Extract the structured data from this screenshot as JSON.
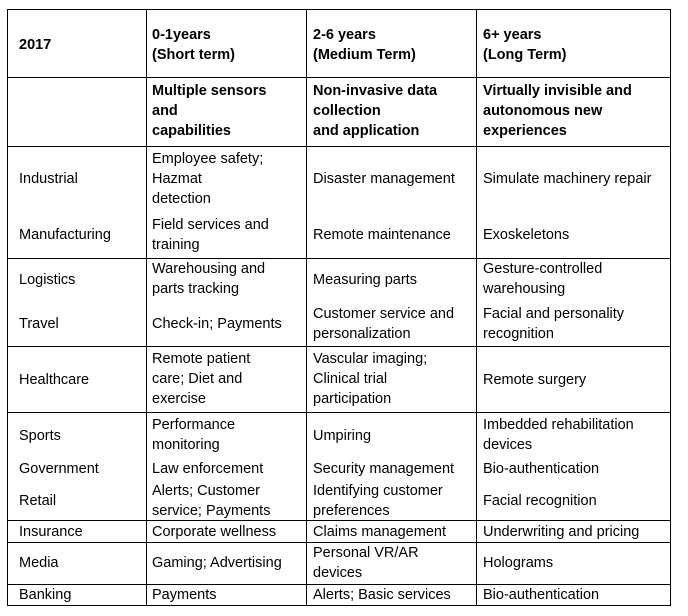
{
  "header": {
    "year": "2017",
    "col1": "0-1years\n(Short term)",
    "col2": "2-6 years\n(Medium Term)",
    "col3": "6+ years\n(Long Term)"
  },
  "subheader": {
    "col1": "Multiple sensors\nand\ncapabilities",
    "col2": "Non-invasive data\ncollection\nand application",
    "col3": "Virtually invisible and\nautonomous new\nexperiences"
  },
  "rows": [
    {
      "sector": "Industrial",
      "short": "Employee safety;\nHazmat\ndetection",
      "medium": "Disaster management",
      "long": "Simulate machinery repair"
    },
    {
      "sector": "Manufacturing",
      "short": "Field services and\ntraining",
      "medium": "Remote maintenance",
      "long": "Exoskeletons"
    },
    {
      "sector": "Logistics",
      "short": "Warehousing and\nparts tracking",
      "medium": "Measuring parts",
      "long": "Gesture-controlled\nwarehousing"
    },
    {
      "sector": "Travel",
      "short": "Check-in; Payments",
      "medium": "Customer service and\npersonalization",
      "long": "Facial and personality\nrecognition"
    },
    {
      "sector": "Healthcare",
      "short": "Remote patient\ncare; Diet and\nexercise",
      "medium": "Vascular imaging;\nClinical trial\nparticipation",
      "long": "Remote surgery"
    },
    {
      "sector": "Sports",
      "short": "Performance\nmonitoring",
      "medium": "Umpiring",
      "long": "Imbedded rehabilitation\ndevices"
    },
    {
      "sector": "Government",
      "short": "Law enforcement",
      "medium": "Security management",
      "long": "Bio-authentication"
    },
    {
      "sector": "Retail",
      "short": "Alerts; Customer\nservice; Payments",
      "medium": "Identifying customer\npreferences",
      "long": "Facial recognition"
    },
    {
      "sector": "Insurance",
      "short": "Corporate wellness",
      "medium": "Claims management",
      "long": "Underwriting and pricing"
    },
    {
      "sector": "Media",
      "short": "Gaming; Advertising",
      "medium": "Personal VR/AR\ndevices",
      "long": "Holograms"
    },
    {
      "sector": "Banking",
      "short": "Payments",
      "medium": "Alerts; Basic services",
      "long": "Bio-authentication"
    }
  ]
}
